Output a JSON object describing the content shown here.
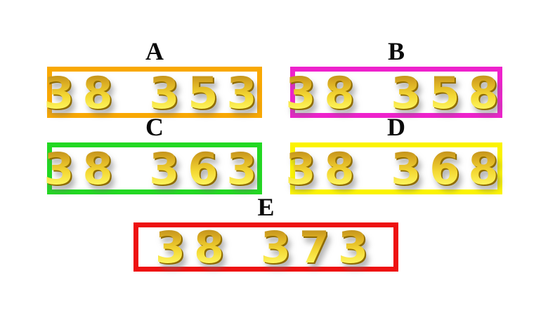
{
  "page": {
    "background_color": "#ffffff",
    "digit_gold_color": "#e7c52e",
    "label_color": "#0a0a0a"
  },
  "options": [
    {
      "label": "A",
      "digits": "38 353",
      "border_color": "#f9a802"
    },
    {
      "label": "B",
      "digits": "38 358",
      "border_color": "#ee22cc"
    },
    {
      "label": "C",
      "digits": "38 363",
      "border_color": "#22d822"
    },
    {
      "label": "D",
      "digits": "38 368",
      "border_color": "#fbf300"
    },
    {
      "label": "E",
      "digits": "38 373",
      "border_color": "#ee1111"
    }
  ]
}
